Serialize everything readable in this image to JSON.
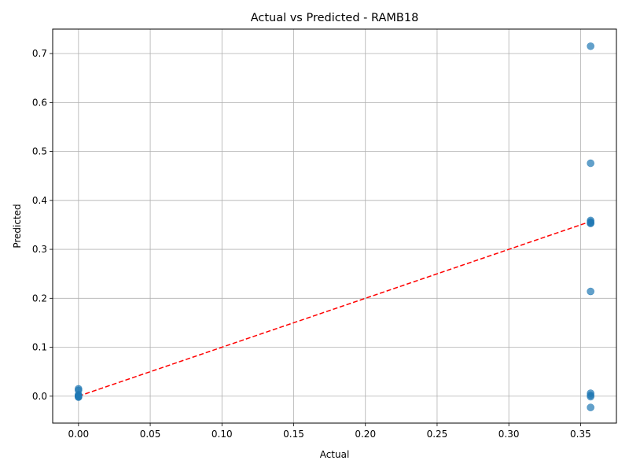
{
  "chart_data": {
    "type": "scatter",
    "title": "Actual vs Predicted - RAMB18",
    "xlabel": "Actual",
    "ylabel": "Predicted",
    "xlim": [
      -0.018,
      0.375
    ],
    "ylim": [
      -0.055,
      0.75
    ],
    "xticks": [
      0.0,
      0.05,
      0.1,
      0.15,
      0.2,
      0.25,
      0.3,
      0.35
    ],
    "xtick_labels": [
      "0.00",
      "0.05",
      "0.10",
      "0.15",
      "0.20",
      "0.25",
      "0.30",
      "0.35"
    ],
    "yticks": [
      0.0,
      0.1,
      0.2,
      0.3,
      0.4,
      0.5,
      0.6,
      0.7
    ],
    "ytick_labels": [
      "0.0",
      "0.1",
      "0.2",
      "0.3",
      "0.4",
      "0.5",
      "0.6",
      "0.7"
    ],
    "grid": true,
    "point_color": "#1f77b4",
    "point_alpha": 0.7,
    "reference_line": {
      "x": [
        0.0,
        0.357
      ],
      "y": [
        0.0,
        0.357
      ],
      "color": "#ff0000",
      "style": "dashed"
    },
    "points": [
      {
        "x": 0.0,
        "y": 0.015
      },
      {
        "x": 0.0,
        "y": 0.012
      },
      {
        "x": 0.0,
        "y": 0.003
      },
      {
        "x": 0.0,
        "y": 0.001
      },
      {
        "x": 0.0,
        "y": 0.0
      },
      {
        "x": 0.0,
        "y": -0.001
      },
      {
        "x": 0.0,
        "y": -0.002
      },
      {
        "x": 0.357,
        "y": 0.715
      },
      {
        "x": 0.357,
        "y": 0.476
      },
      {
        "x": 0.357,
        "y": 0.359
      },
      {
        "x": 0.357,
        "y": 0.356
      },
      {
        "x": 0.357,
        "y": 0.354
      },
      {
        "x": 0.357,
        "y": 0.353
      },
      {
        "x": 0.357,
        "y": 0.214
      },
      {
        "x": 0.357,
        "y": 0.006
      },
      {
        "x": 0.357,
        "y": 0.002
      },
      {
        "x": 0.357,
        "y": -0.001
      },
      {
        "x": 0.357,
        "y": -0.023
      }
    ]
  }
}
